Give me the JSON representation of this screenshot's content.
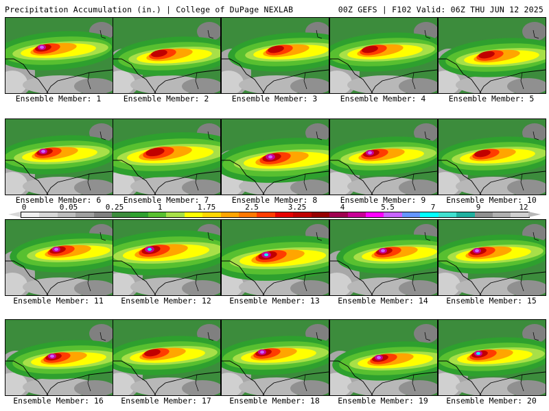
{
  "header": {
    "title_left": "Precipitation Accumulation (in.) | College of DuPage NEXLAB",
    "title_right": "00Z GEFS | F102 Valid: 06Z THU JUN 12 2025"
  },
  "panels": [
    {
      "label": "Ensemble Member: 1"
    },
    {
      "label": "Ensemble Member: 2"
    },
    {
      "label": "Ensemble Member: 3"
    },
    {
      "label": "Ensemble Member: 4"
    },
    {
      "label": "Ensemble Member: 5"
    },
    {
      "label": "Ensemble Member: 6"
    },
    {
      "label": "Ensemble Member: 7"
    },
    {
      "label": "Ensemble Member: 8"
    },
    {
      "label": "Ensemble Member: 9"
    },
    {
      "label": "Ensemble Member: 10"
    },
    {
      "label": "Ensemble Member: 11"
    },
    {
      "label": "Ensemble Member: 12"
    },
    {
      "label": "Ensemble Member: 13"
    },
    {
      "label": "Ensemble Member: 14"
    },
    {
      "label": "Ensemble Member: 15"
    },
    {
      "label": "Ensemble Member: 16"
    },
    {
      "label": "Ensemble Member: 17"
    },
    {
      "label": "Ensemble Member: 18"
    },
    {
      "label": "Ensemble Member: 19"
    },
    {
      "label": "Ensemble Member: 20"
    }
  ],
  "colorbar": {
    "labels": [
      "0",
      "0.05",
      "0.25",
      "1",
      "1.75",
      "2.5",
      "3.25",
      "4",
      "5.5",
      "7",
      "9",
      "12"
    ],
    "colors": [
      "#f0f0f0",
      "#d8d8d8",
      "#bebebe",
      "#a0a0a0",
      "#808080",
      "#3c8c3c",
      "#2ea02e",
      "#58c030",
      "#a8e048",
      "#ffff00",
      "#ffd700",
      "#ffa500",
      "#ff7800",
      "#ff3c00",
      "#e60000",
      "#c00000",
      "#960000",
      "#a00050",
      "#c80096",
      "#ff00ff",
      "#c864ff",
      "#6496ff",
      "#00ffff",
      "#40e0d0",
      "#20b0a0",
      "#909090",
      "#b0b0b0",
      "#d0d0d0"
    ]
  }
}
